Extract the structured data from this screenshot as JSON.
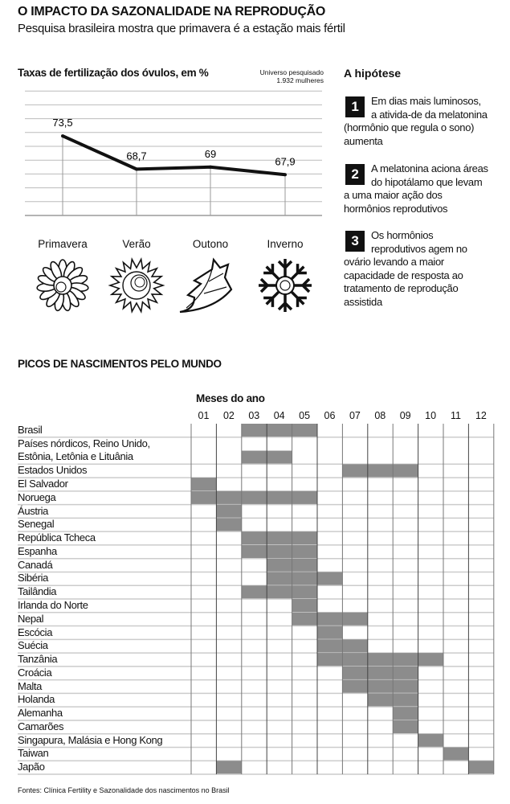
{
  "header": {
    "title": "O IMPACTO DA SAZONALIDADE NA REPRODUÇÃO",
    "subtitle": "Pesquisa brasileira mostra que primavera é a estação mais fértil"
  },
  "chart_data": [
    {
      "type": "line",
      "title": "Taxas de fertilização dos óvulos, em %",
      "note": [
        "Universo pesquisado",
        "1.932 mulheres"
      ],
      "categories": [
        "Primavera",
        "Verão",
        "Outono",
        "Inverno"
      ],
      "values": [
        73.5,
        68.7,
        69,
        67.9
      ],
      "value_labels": [
        "73,5",
        "68,7",
        "69",
        "67,9"
      ],
      "icons": [
        "flower-icon",
        "sun-icon",
        "leaf-icon",
        "snowflake-icon"
      ],
      "ylim": [
        62,
        80
      ],
      "grid": true,
      "line_color": "#111111"
    },
    {
      "type": "table",
      "title": "PICOS DE NASCIMENTOS PELO MUNDO",
      "column_title": "Meses do ano",
      "months": [
        "01",
        "02",
        "03",
        "04",
        "05",
        "06",
        "07",
        "08",
        "09",
        "10",
        "11",
        "12"
      ],
      "fill_color": "#8c8c8c",
      "rows": [
        {
          "label": "Brasil",
          "months": [
            3,
            4,
            5
          ]
        },
        {
          "label": "Países nórdicos, Reino Unido,\nEstônia, Letônia e Lituânia",
          "months": [
            3,
            4
          ]
        },
        {
          "label": "Estados Unidos",
          "months": [
            7,
            8,
            9
          ]
        },
        {
          "label": "El Salvador",
          "months": [
            1
          ]
        },
        {
          "label": "Noruega",
          "months": [
            1,
            2,
            3,
            4,
            5
          ]
        },
        {
          "label": "Áustria",
          "months": [
            2
          ]
        },
        {
          "label": "Senegal",
          "months": [
            2
          ]
        },
        {
          "label": "República Tcheca",
          "months": [
            3,
            4,
            5
          ]
        },
        {
          "label": "Espanha",
          "months": [
            3,
            4,
            5
          ]
        },
        {
          "label": "Canadá",
          "months": [
            4,
            5
          ]
        },
        {
          "label": "Sibéria",
          "months": [
            4,
            5,
            6
          ]
        },
        {
          "label": "Tailândia",
          "months": [
            3,
            4,
            5
          ]
        },
        {
          "label": "Irlanda do Norte",
          "months": [
            5
          ]
        },
        {
          "label": "Nepal",
          "months": [
            5,
            6,
            7
          ]
        },
        {
          "label": "Escócia",
          "months": [
            6
          ]
        },
        {
          "label": "Suécia",
          "months": [
            6,
            7
          ]
        },
        {
          "label": "Tanzânia",
          "months": [
            6,
            7,
            8,
            9,
            10
          ]
        },
        {
          "label": "Croácia",
          "months": [
            7,
            8,
            9
          ]
        },
        {
          "label": "Malta",
          "months": [
            7,
            8,
            9
          ]
        },
        {
          "label": "Holanda",
          "months": [
            8,
            9
          ]
        },
        {
          "label": "Alemanha",
          "months": [
            9
          ]
        },
        {
          "label": "Camarões",
          "months": [
            9
          ]
        },
        {
          "label": "Singapura, Malásia e Hong Kong",
          "months": [
            10
          ]
        },
        {
          "label": "Taiwan",
          "months": [
            11
          ]
        },
        {
          "label": "Japão",
          "months": [
            2,
            12
          ]
        }
      ]
    }
  ],
  "hypothesis": {
    "title": "A hipótese",
    "steps": [
      {
        "num": "1",
        "text": "Em dias mais luminosos, a ativida-de da melatonina (hormônio que regula o sono) aumenta"
      },
      {
        "num": "2",
        "text": "A melatonina  aciona áreas do hipotálamo que levam a uma maior ação dos hormônios reprodutivos"
      },
      {
        "num": "3",
        "text": "Os hormônios reprodutivos agem no ovário levando a maior capacidade de resposta ao tratamento de reprodução assistida"
      }
    ]
  },
  "source": "Fontes: Clínica Fertility e Sazonalidade dos nascimentos no Brasil"
}
